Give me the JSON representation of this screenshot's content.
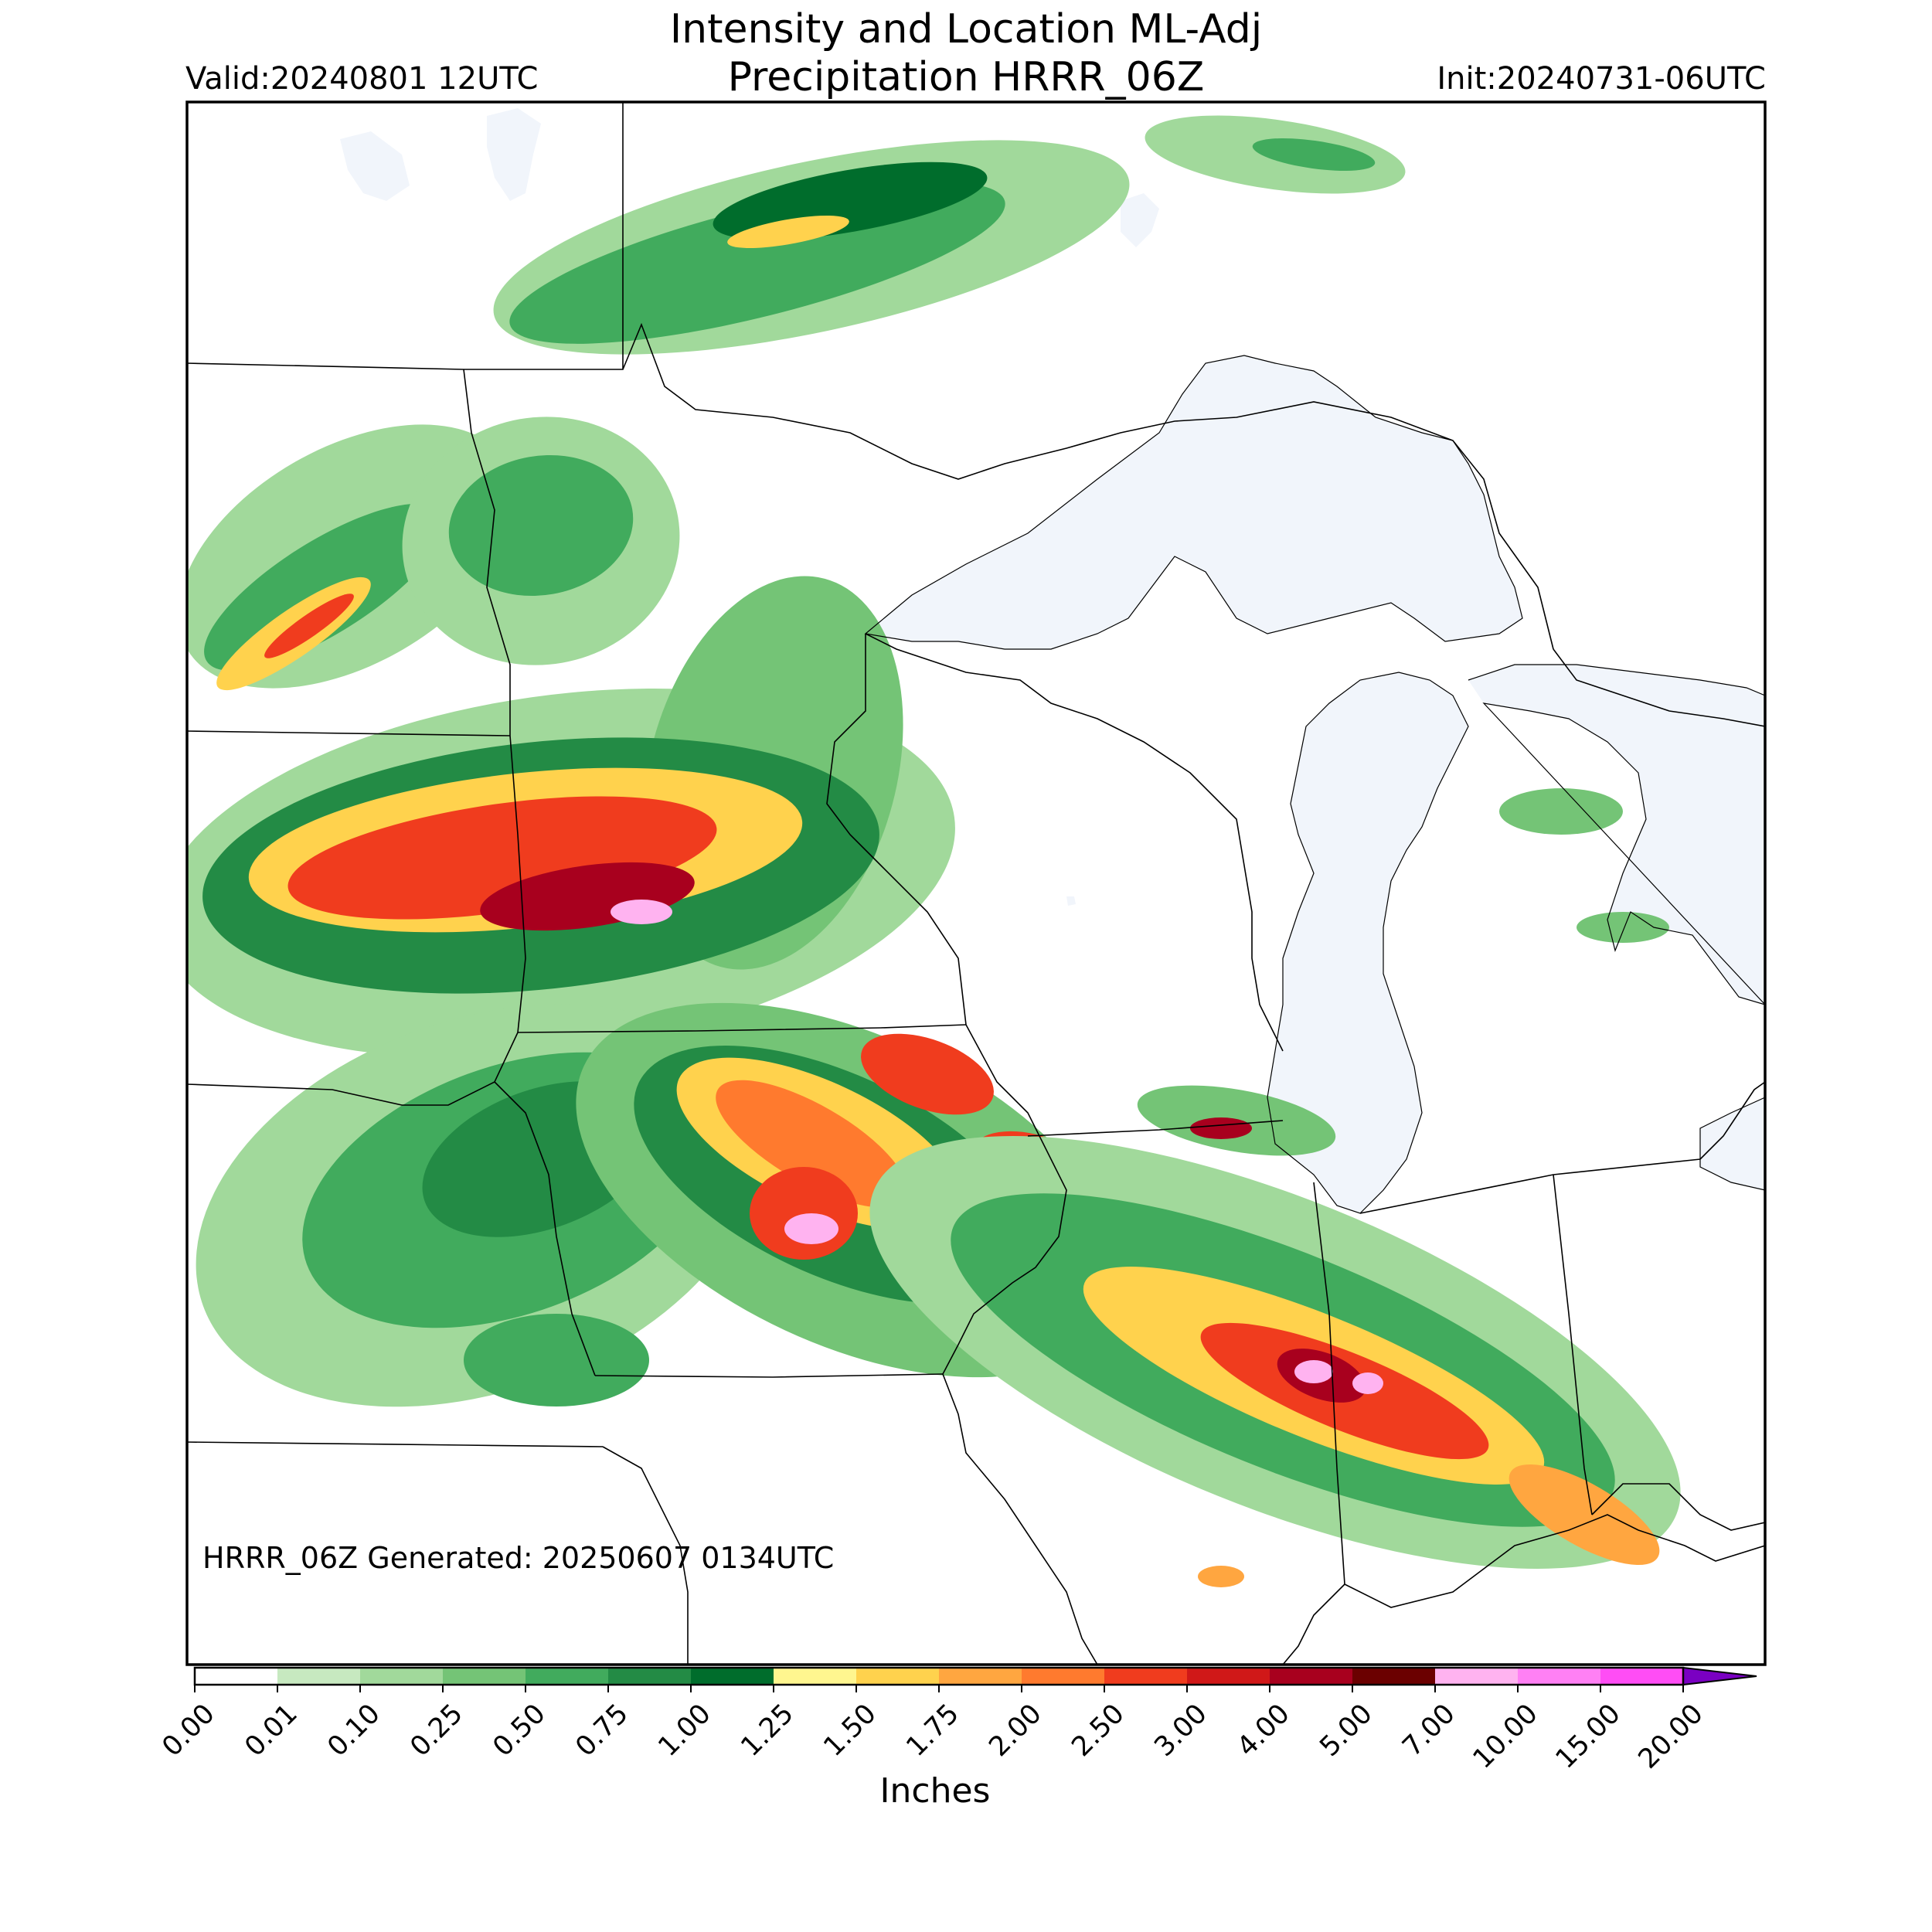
{
  "title": {
    "line1": "Intensity and Location ML-Adj",
    "line2": "Precipitation HRRR_06Z"
  },
  "valid_label": "Valid:20240801 12UTC",
  "init_label": "Init:20240731-06UTC",
  "generated_note": "HRRR_06Z Generated: 20250607 0134UTC",
  "colorbar": {
    "title": "Inches",
    "ticks": [
      "0.00",
      "0.01",
      "0.10",
      "0.25",
      "0.50",
      "0.75",
      "1.00",
      "1.25",
      "1.50",
      "1.75",
      "2.00",
      "2.50",
      "3.00",
      "4.00",
      "5.00",
      "7.00",
      "10.00",
      "15.00",
      "20.00"
    ],
    "colors": [
      "#ffffff",
      "#c7e9c0",
      "#a1d99b",
      "#74c476",
      "#41ab5d",
      "#238b45",
      "#006d2c",
      "#fff68f",
      "#ffd24d",
      "#ffa640",
      "#ff7a2e",
      "#f03c1e",
      "#d01818",
      "#a8001e",
      "#6b0000",
      "#ffb3f0",
      "#ff80f4",
      "#ff4df5",
      "#e619f2",
      "#b200e0",
      "#7a00c2"
    ]
  },
  "map_colors": {
    "water": "#f1f5fb",
    "border": "#000000",
    "frame": "#000000"
  }
}
